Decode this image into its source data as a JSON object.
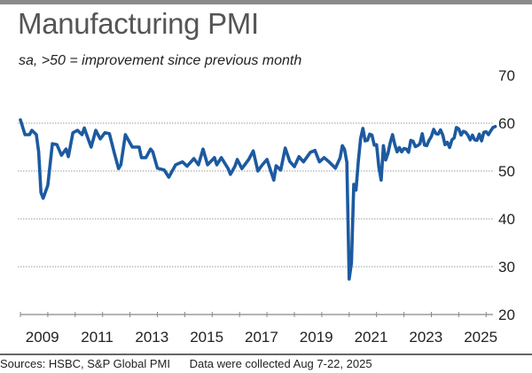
{
  "header": {
    "title": "Manufacturing PMI",
    "subtitle": "sa, >50 = improvement since previous month"
  },
  "footer": {
    "sources": "Sources: HSBC, S&P Global PMI",
    "note": "Data were collected Aug 7-22, 2025"
  },
  "chart_data": {
    "type": "line",
    "title": "Manufacturing PMI",
    "subtitle": "sa, >50 = improvement since previous month",
    "xlabel": "",
    "ylabel": "",
    "ylim": [
      20,
      70
    ],
    "yticks": [
      20,
      30,
      40,
      50,
      60,
      70
    ],
    "xticks": [
      "2009",
      "2011",
      "2013",
      "2015",
      "2017",
      "2019",
      "2021",
      "2023",
      "2025"
    ],
    "grid": "horizontal dotted",
    "colors": {
      "line": "#1c5aa0",
      "grid": "#999999"
    },
    "points": [
      [
        "2008-04",
        60.7
      ],
      [
        "2008-06",
        57.6
      ],
      [
        "2008-08",
        57.6
      ],
      [
        "2008-09",
        58.5
      ],
      [
        "2008-11",
        57.6
      ],
      [
        "2008-12",
        54.0
      ],
      [
        "2009-01",
        45.5
      ],
      [
        "2009-02",
        44.3
      ],
      [
        "2009-04",
        47.0
      ],
      [
        "2009-06",
        55.7
      ],
      [
        "2009-08",
        55.5
      ],
      [
        "2009-10",
        53.3
      ],
      [
        "2009-12",
        54.6
      ],
      [
        "2010-01",
        53.0
      ],
      [
        "2010-03",
        58.0
      ],
      [
        "2010-05",
        58.5
      ],
      [
        "2010-07",
        57.6
      ],
      [
        "2010-08",
        59.0
      ],
      [
        "2010-09",
        57.6
      ],
      [
        "2010-11",
        55.0
      ],
      [
        "2011-01",
        58.5
      ],
      [
        "2011-03",
        56.7
      ],
      [
        "2011-05",
        58.0
      ],
      [
        "2011-07",
        57.8
      ],
      [
        "2011-09",
        54.0
      ],
      [
        "2011-11",
        50.5
      ],
      [
        "2011-12",
        51.3
      ],
      [
        "2012-02",
        57.6
      ],
      [
        "2012-05",
        55.0
      ],
      [
        "2012-08",
        55.0
      ],
      [
        "2012-09",
        52.8
      ],
      [
        "2012-11",
        52.8
      ],
      [
        "2013-01",
        54.6
      ],
      [
        "2013-02",
        54.0
      ],
      [
        "2013-04",
        50.6
      ],
      [
        "2013-07",
        50.2
      ],
      [
        "2013-09",
        48.7
      ],
      [
        "2013-12",
        51.3
      ],
      [
        "2014-03",
        51.9
      ],
      [
        "2014-05",
        51.0
      ],
      [
        "2014-08",
        52.6
      ],
      [
        "2014-10",
        51.3
      ],
      [
        "2014-12",
        54.6
      ],
      [
        "2015-02",
        51.3
      ],
      [
        "2015-05",
        52.8
      ],
      [
        "2015-06",
        51.3
      ],
      [
        "2015-08",
        52.8
      ],
      [
        "2015-11",
        50.5
      ],
      [
        "2015-12",
        49.3
      ],
      [
        "2016-02",
        51.0
      ],
      [
        "2016-03",
        52.4
      ],
      [
        "2016-05",
        50.5
      ],
      [
        "2016-08",
        52.4
      ],
      [
        "2016-10",
        54.2
      ],
      [
        "2016-12",
        50.0
      ],
      [
        "2017-02",
        51.3
      ],
      [
        "2017-04",
        52.4
      ],
      [
        "2017-07",
        48.1
      ],
      [
        "2017-08",
        51.1
      ],
      [
        "2017-10",
        50.2
      ],
      [
        "2017-12",
        54.8
      ],
      [
        "2018-02",
        52.0
      ],
      [
        "2018-04",
        50.9
      ],
      [
        "2018-06",
        53.0
      ],
      [
        "2018-08",
        51.9
      ],
      [
        "2018-11",
        53.9
      ],
      [
        "2019-01",
        54.3
      ],
      [
        "2019-03",
        51.9
      ],
      [
        "2019-05",
        52.8
      ],
      [
        "2019-07",
        52.0
      ],
      [
        "2019-10",
        50.6
      ],
      [
        "2019-12",
        52.7
      ],
      [
        "2020-01",
        55.3
      ],
      [
        "2020-02",
        54.5
      ],
      [
        "2020-03",
        51.8
      ],
      [
        "2020-04",
        27.4
      ],
      [
        "2020-05",
        30.8
      ],
      [
        "2020-06",
        47.2
      ],
      [
        "2020-07",
        46.0
      ],
      [
        "2020-08",
        52.0
      ],
      [
        "2020-09",
        56.8
      ],
      [
        "2020-10",
        58.9
      ],
      [
        "2020-11",
        56.3
      ],
      [
        "2020-12",
        56.4
      ],
      [
        "2021-01",
        57.7
      ],
      [
        "2021-02",
        57.5
      ],
      [
        "2021-03",
        55.4
      ],
      [
        "2021-04",
        55.5
      ],
      [
        "2021-05",
        50.8
      ],
      [
        "2021-06",
        48.1
      ],
      [
        "2021-07",
        55.3
      ],
      [
        "2021-08",
        52.3
      ],
      [
        "2021-09",
        53.7
      ],
      [
        "2021-10",
        55.9
      ],
      [
        "2021-11",
        57.6
      ],
      [
        "2021-12",
        55.5
      ],
      [
        "2022-01",
        54.0
      ],
      [
        "2022-02",
        54.9
      ],
      [
        "2022-03",
        54.0
      ],
      [
        "2022-04",
        54.7
      ],
      [
        "2022-05",
        54.6
      ],
      [
        "2022-06",
        53.9
      ],
      [
        "2022-07",
        56.4
      ],
      [
        "2022-08",
        56.2
      ],
      [
        "2022-09",
        55.1
      ],
      [
        "2022-10",
        55.3
      ],
      [
        "2022-11",
        55.7
      ],
      [
        "2022-12",
        57.8
      ],
      [
        "2023-01",
        55.4
      ],
      [
        "2023-02",
        55.3
      ],
      [
        "2023-03",
        56.4
      ],
      [
        "2023-04",
        57.2
      ],
      [
        "2023-05",
        58.7
      ],
      [
        "2023-06",
        57.8
      ],
      [
        "2023-07",
        57.7
      ],
      [
        "2023-08",
        58.6
      ],
      [
        "2023-09",
        57.5
      ],
      [
        "2023-10",
        55.5
      ],
      [
        "2023-11",
        56.0
      ],
      [
        "2023-12",
        54.9
      ],
      [
        "2024-01",
        56.5
      ],
      [
        "2024-02",
        56.9
      ],
      [
        "2024-03",
        59.1
      ],
      [
        "2024-04",
        58.8
      ],
      [
        "2024-05",
        57.5
      ],
      [
        "2024-06",
        58.3
      ],
      [
        "2024-07",
        58.1
      ],
      [
        "2024-08",
        57.5
      ],
      [
        "2024-09",
        56.5
      ],
      [
        "2024-10",
        57.5
      ],
      [
        "2024-11",
        56.5
      ],
      [
        "2024-12",
        56.4
      ],
      [
        "2025-01",
        57.7
      ],
      [
        "2025-02",
        56.3
      ],
      [
        "2025-03",
        58.1
      ],
      [
        "2025-04",
        58.2
      ],
      [
        "2025-05",
        57.6
      ],
      [
        "2025-06",
        58.4
      ],
      [
        "2025-07",
        59.1
      ],
      [
        "2025-08",
        59.3
      ]
    ]
  }
}
